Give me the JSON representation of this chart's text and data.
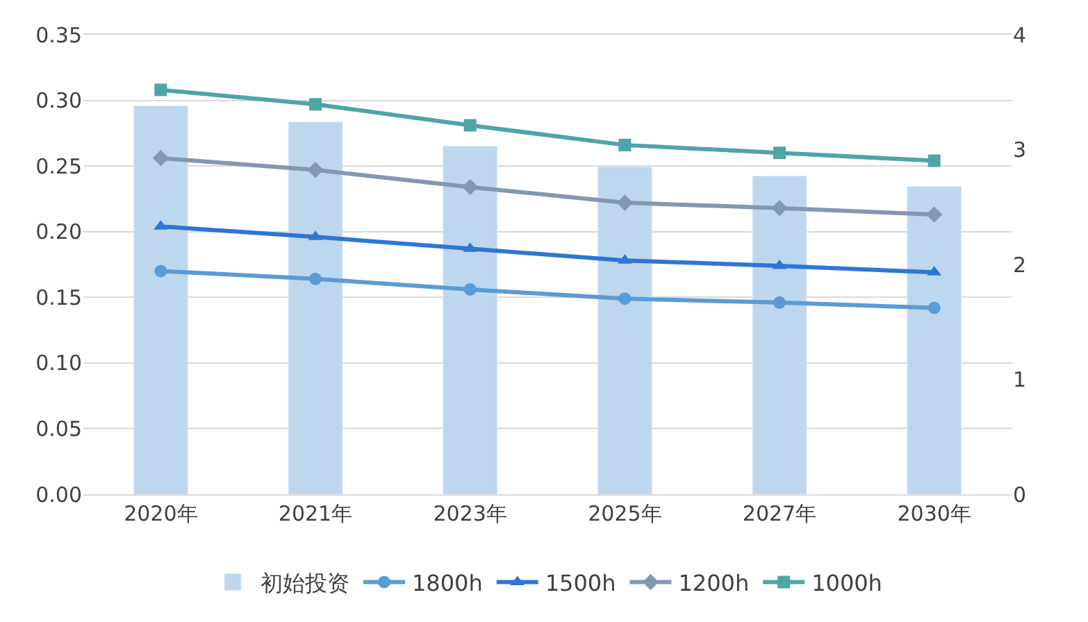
{
  "chart_data": {
    "type": "line",
    "categories": [
      "2020年",
      "2021年",
      "2023年",
      "2025年",
      "2027年",
      "2030年"
    ],
    "series": [
      {
        "name": "初始投资",
        "type": "bar",
        "axis": "y2",
        "color": "#bdd7ee",
        "values": [
          3.38,
          3.24,
          3.03,
          2.85,
          2.77,
          2.68
        ]
      },
      {
        "name": "1800h",
        "color": "#5b9bd5",
        "marker": "circle",
        "values": [
          0.17,
          0.164,
          0.156,
          0.149,
          0.146,
          0.142
        ]
      },
      {
        "name": "1500h",
        "color": "#2e75d6",
        "marker": "triangle",
        "values": [
          0.204,
          0.196,
          0.187,
          0.178,
          0.174,
          0.169
        ]
      },
      {
        "name": "1200h",
        "color": "#8497b0",
        "marker": "diamond",
        "values": [
          0.256,
          0.247,
          0.234,
          0.222,
          0.218,
          0.213
        ]
      },
      {
        "name": "1000h",
        "color": "#4ea5a8",
        "marker": "square",
        "values": [
          0.308,
          0.297,
          0.281,
          0.266,
          0.26,
          0.254
        ]
      }
    ],
    "ylim": [
      0,
      0.35
    ],
    "yticks": [
      {
        "value": 0,
        "label": "0.00"
      },
      {
        "value": 0.05,
        "label": "0.05"
      },
      {
        "value": 0.1,
        "label": "0.10"
      },
      {
        "value": 0.15,
        "label": "0.15"
      },
      {
        "value": 0.2,
        "label": "0.20"
      },
      {
        "value": 0.25,
        "label": "0.25"
      },
      {
        "value": 0.3,
        "label": "0.30"
      },
      {
        "value": 0.35,
        "label": "0.35"
      }
    ],
    "y2lim": [
      0,
      4
    ],
    "y2ticks": [
      0,
      1,
      2,
      3,
      4
    ],
    "grid": "y",
    "legend": "bottom",
    "line_style": "solid"
  }
}
